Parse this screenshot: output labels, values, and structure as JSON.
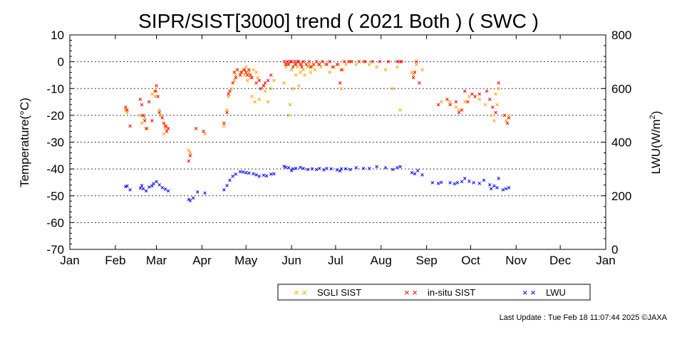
{
  "chart_data": {
    "type": "scatter",
    "title": "SIPR/SIST[3000] trend ( 2021 Both ) ( SWC )",
    "ylabel": "Temperature(°C)",
    "y2label": "LWU(W/m",
    "y2label_sup": "2",
    "y2label_end": ")",
    "ylim": [
      -70,
      10
    ],
    "yticks": [
      "10",
      "0",
      "-10",
      "-20",
      "-30",
      "-40",
      "-50",
      "-60",
      "-70"
    ],
    "y2lim": [
      0,
      800
    ],
    "y2ticks": [
      "800",
      "600",
      "400",
      "200",
      "0"
    ],
    "xlim": [
      1,
      366
    ],
    "months": [
      "Jan",
      "Feb",
      "Mar",
      "Apr",
      "May",
      "Jun",
      "Jul",
      "Aug",
      "Sep",
      "Oct",
      "Nov",
      "Dec",
      "Jan"
    ],
    "grid": "horizontal dotted",
    "legend_position": "bottom-right",
    "marker": "×",
    "colors": {
      "sgli": "#ffa500",
      "insitu": "#ff0000",
      "lwu": "#0000ff"
    },
    "series": [
      {
        "name": "SGLI SIST",
        "key": "sgli",
        "axis": "left",
        "points": [
          [
            39,
            -18
          ],
          [
            40,
            -19
          ],
          [
            49,
            -20
          ],
          [
            50,
            -23
          ],
          [
            52,
            -21
          ],
          [
            54,
            -25
          ],
          [
            57,
            -12
          ],
          [
            59,
            -13
          ],
          [
            60,
            -11
          ],
          [
            62,
            -18
          ],
          [
            63,
            -20
          ],
          [
            65,
            -27
          ],
          [
            66,
            -25
          ],
          [
            67,
            -24
          ],
          [
            82,
            -33
          ],
          [
            83,
            -34
          ],
          [
            93,
            -27
          ],
          [
            106,
            -24
          ],
          [
            108,
            -18
          ],
          [
            109,
            -13
          ],
          [
            111,
            -10
          ],
          [
            113,
            -7
          ],
          [
            114,
            -5
          ],
          [
            117,
            -4
          ],
          [
            119,
            -3
          ],
          [
            120,
            -5
          ],
          [
            121,
            -2
          ],
          [
            122,
            -7
          ],
          [
            123,
            -4
          ],
          [
            124,
            -6
          ],
          [
            125,
            -13
          ],
          [
            126,
            -3
          ],
          [
            127,
            -15
          ],
          [
            128,
            -4
          ],
          [
            129,
            -6
          ],
          [
            130,
            -14
          ],
          [
            133,
            -9
          ],
          [
            134,
            -11
          ],
          [
            136,
            -15
          ],
          [
            138,
            -10
          ],
          [
            140,
            -7
          ],
          [
            147,
            -8
          ],
          [
            148,
            -2
          ],
          [
            149,
            -1
          ],
          [
            150,
            -20
          ],
          [
            151,
            -16
          ],
          [
            152,
            -3
          ],
          [
            153,
            -10
          ],
          [
            154,
            -1
          ],
          [
            155,
            -5
          ],
          [
            156,
            -2
          ],
          [
            157,
            -9
          ],
          [
            158,
            -4
          ],
          [
            159,
            -1
          ],
          [
            160,
            -3
          ],
          [
            161,
            -5
          ],
          [
            163,
            -2
          ],
          [
            164,
            -1
          ],
          [
            165,
            -4
          ],
          [
            166,
            -2
          ],
          [
            168,
            -3
          ],
          [
            170,
            -1
          ],
          [
            172,
            -2
          ],
          [
            175,
            -1
          ],
          [
            178,
            -4
          ],
          [
            181,
            -2
          ],
          [
            184,
            -1
          ],
          [
            186,
            -10
          ],
          [
            187,
            -3
          ],
          [
            189,
            -1
          ],
          [
            192,
            0
          ],
          [
            196,
            -1
          ],
          [
            201,
            0
          ],
          [
            205,
            -1
          ],
          [
            210,
            -2
          ],
          [
            216,
            -3
          ],
          [
            221,
            -10
          ],
          [
            224,
            -2
          ],
          [
            226,
            -18
          ],
          [
            234,
            -4
          ],
          [
            235,
            -5
          ],
          [
            237,
            -1
          ],
          [
            241,
            -3
          ],
          [
            254,
            -15
          ],
          [
            260,
            -15
          ],
          [
            264,
            -17
          ],
          [
            266,
            -18
          ],
          [
            270,
            -15
          ],
          [
            273,
            -13
          ],
          [
            280,
            -14
          ],
          [
            284,
            -16
          ],
          [
            288,
            -20
          ],
          [
            290,
            -22
          ],
          [
            291,
            -12
          ],
          [
            292,
            -16
          ],
          [
            293,
            -10
          ],
          [
            298,
            -22
          ],
          [
            300,
            -20
          ]
        ]
      },
      {
        "name": "in-situ SIST",
        "key": "insitu",
        "axis": "left",
        "points": [
          [
            39,
            -17
          ],
          [
            40,
            -18
          ],
          [
            42,
            -24
          ],
          [
            49,
            -14
          ],
          [
            50,
            -16
          ],
          [
            51,
            -20
          ],
          [
            52,
            -22
          ],
          [
            53,
            -25
          ],
          [
            55,
            -15
          ],
          [
            57,
            -22
          ],
          [
            59,
            -11
          ],
          [
            60,
            -9
          ],
          [
            61,
            -13
          ],
          [
            62,
            -19
          ],
          [
            64,
            -21
          ],
          [
            65,
            -23
          ],
          [
            66,
            -24
          ],
          [
            67,
            -26
          ],
          [
            68,
            -25
          ],
          [
            82,
            -37
          ],
          [
            83,
            -35
          ],
          [
            87,
            -25
          ],
          [
            92,
            -26
          ],
          [
            106,
            -23
          ],
          [
            108,
            -19
          ],
          [
            109,
            -12
          ],
          [
            110,
            -11
          ],
          [
            112,
            -8
          ],
          [
            113,
            -4
          ],
          [
            114,
            -6
          ],
          [
            115,
            -3
          ],
          [
            117,
            -5
          ],
          [
            118,
            -4
          ],
          [
            120,
            -3
          ],
          [
            121,
            -4
          ],
          [
            122,
            -5
          ],
          [
            123,
            -3
          ],
          [
            124,
            -5
          ],
          [
            125,
            -6
          ],
          [
            128,
            -8
          ],
          [
            130,
            -7
          ],
          [
            131,
            -10
          ],
          [
            133,
            -9
          ],
          [
            134,
            -8
          ],
          [
            136,
            -7
          ],
          [
            138,
            -5
          ],
          [
            147,
            0
          ],
          [
            148,
            -1
          ],
          [
            149,
            0
          ],
          [
            150,
            -1
          ],
          [
            151,
            0
          ],
          [
            152,
            0
          ],
          [
            153,
            -2
          ],
          [
            154,
            0
          ],
          [
            155,
            -1
          ],
          [
            156,
            0
          ],
          [
            157,
            0
          ],
          [
            158,
            -1
          ],
          [
            159,
            -2
          ],
          [
            160,
            0
          ],
          [
            162,
            -1
          ],
          [
            164,
            0
          ],
          [
            165,
            -2
          ],
          [
            167,
            -1
          ],
          [
            169,
            0
          ],
          [
            171,
            -1
          ],
          [
            173,
            0
          ],
          [
            176,
            -1
          ],
          [
            178,
            0
          ],
          [
            180,
            -2
          ],
          [
            183,
            -1
          ],
          [
            185,
            -8
          ],
          [
            186,
            -3
          ],
          [
            188,
            0
          ],
          [
            191,
            0
          ],
          [
            193,
            0
          ],
          [
            198,
            0
          ],
          [
            202,
            0
          ],
          [
            207,
            0
          ],
          [
            212,
            0
          ],
          [
            218,
            0
          ],
          [
            224,
            0
          ],
          [
            226,
            0
          ],
          [
            227,
            0
          ],
          [
            235,
            -6
          ],
          [
            236,
            -4
          ],
          [
            237,
            0
          ],
          [
            239,
            -8
          ],
          [
            252,
            -16
          ],
          [
            258,
            -14
          ],
          [
            260,
            -16
          ],
          [
            264,
            -15
          ],
          [
            266,
            -19
          ],
          [
            268,
            -18
          ],
          [
            270,
            -11
          ],
          [
            272,
            -15
          ],
          [
            275,
            -12
          ],
          [
            277,
            -13
          ],
          [
            280,
            -12
          ],
          [
            285,
            -11
          ],
          [
            287,
            -14
          ],
          [
            289,
            -17
          ],
          [
            291,
            -19
          ],
          [
            293,
            -8
          ],
          [
            297,
            -20
          ],
          [
            299,
            -23
          ],
          [
            300,
            -21
          ]
        ]
      },
      {
        "name": "LWU",
        "key": "lwu",
        "axis": "right",
        "points": [
          [
            39,
            234
          ],
          [
            40,
            236
          ],
          [
            42,
            222
          ],
          [
            49,
            228
          ],
          [
            50,
            238
          ],
          [
            51,
            226
          ],
          [
            53,
            218
          ],
          [
            55,
            232
          ],
          [
            57,
            236
          ],
          [
            58,
            244
          ],
          [
            60,
            252
          ],
          [
            62,
            240
          ],
          [
            64,
            230
          ],
          [
            66,
            224
          ],
          [
            68,
            218
          ],
          [
            82,
            186
          ],
          [
            83,
            182
          ],
          [
            85,
            192
          ],
          [
            88,
            214
          ],
          [
            93,
            210
          ],
          [
            106,
            222
          ],
          [
            108,
            238
          ],
          [
            110,
            258
          ],
          [
            112,
            272
          ],
          [
            114,
            280
          ],
          [
            117,
            290
          ],
          [
            119,
            288
          ],
          [
            121,
            286
          ],
          [
            123,
            284
          ],
          [
            126,
            282
          ],
          [
            128,
            278
          ],
          [
            130,
            272
          ],
          [
            133,
            276
          ],
          [
            135,
            274
          ],
          [
            138,
            280
          ],
          [
            140,
            282
          ],
          [
            147,
            310
          ],
          [
            148,
            306
          ],
          [
            150,
            304
          ],
          [
            152,
            294
          ],
          [
            153,
            300
          ],
          [
            155,
            302
          ],
          [
            158,
            306
          ],
          [
            160,
            302
          ],
          [
            163,
            298
          ],
          [
            166,
            300
          ],
          [
            169,
            298
          ],
          [
            171,
            302
          ],
          [
            174,
            296
          ],
          [
            176,
            302
          ],
          [
            179,
            300
          ],
          [
            183,
            296
          ],
          [
            185,
            292
          ],
          [
            186,
            300
          ],
          [
            189,
            300
          ],
          [
            192,
            298
          ],
          [
            196,
            304
          ],
          [
            201,
            302
          ],
          [
            205,
            302
          ],
          [
            210,
            308
          ],
          [
            216,
            304
          ],
          [
            221,
            298
          ],
          [
            224,
            304
          ],
          [
            226,
            308
          ],
          [
            234,
            286
          ],
          [
            236,
            282
          ],
          [
            238,
            294
          ],
          [
            241,
            278
          ],
          [
            248,
            248
          ],
          [
            252,
            246
          ],
          [
            254,
            250
          ],
          [
            260,
            248
          ],
          [
            263,
            244
          ],
          [
            265,
            248
          ],
          [
            268,
            252
          ],
          [
            270,
            264
          ],
          [
            273,
            254
          ],
          [
            276,
            248
          ],
          [
            280,
            246
          ],
          [
            283,
            258
          ],
          [
            287,
            240
          ],
          [
            288,
            226
          ],
          [
            290,
            236
          ],
          [
            292,
            230
          ],
          [
            293,
            264
          ],
          [
            296,
            222
          ],
          [
            298,
            226
          ],
          [
            300,
            230
          ]
        ]
      }
    ]
  },
  "legend": {
    "items": [
      {
        "key": "sgli",
        "label": "SGLI SIST",
        "symbol": "× ×"
      },
      {
        "key": "insitu",
        "label": "in-situ SIST",
        "symbol": "× ×"
      },
      {
        "key": "lwu",
        "label": "LWU",
        "symbol": "× ×"
      }
    ]
  },
  "footer": {
    "text": "Last Update : Tue Feb 18 11:07:44 2025  ©JAXA"
  }
}
